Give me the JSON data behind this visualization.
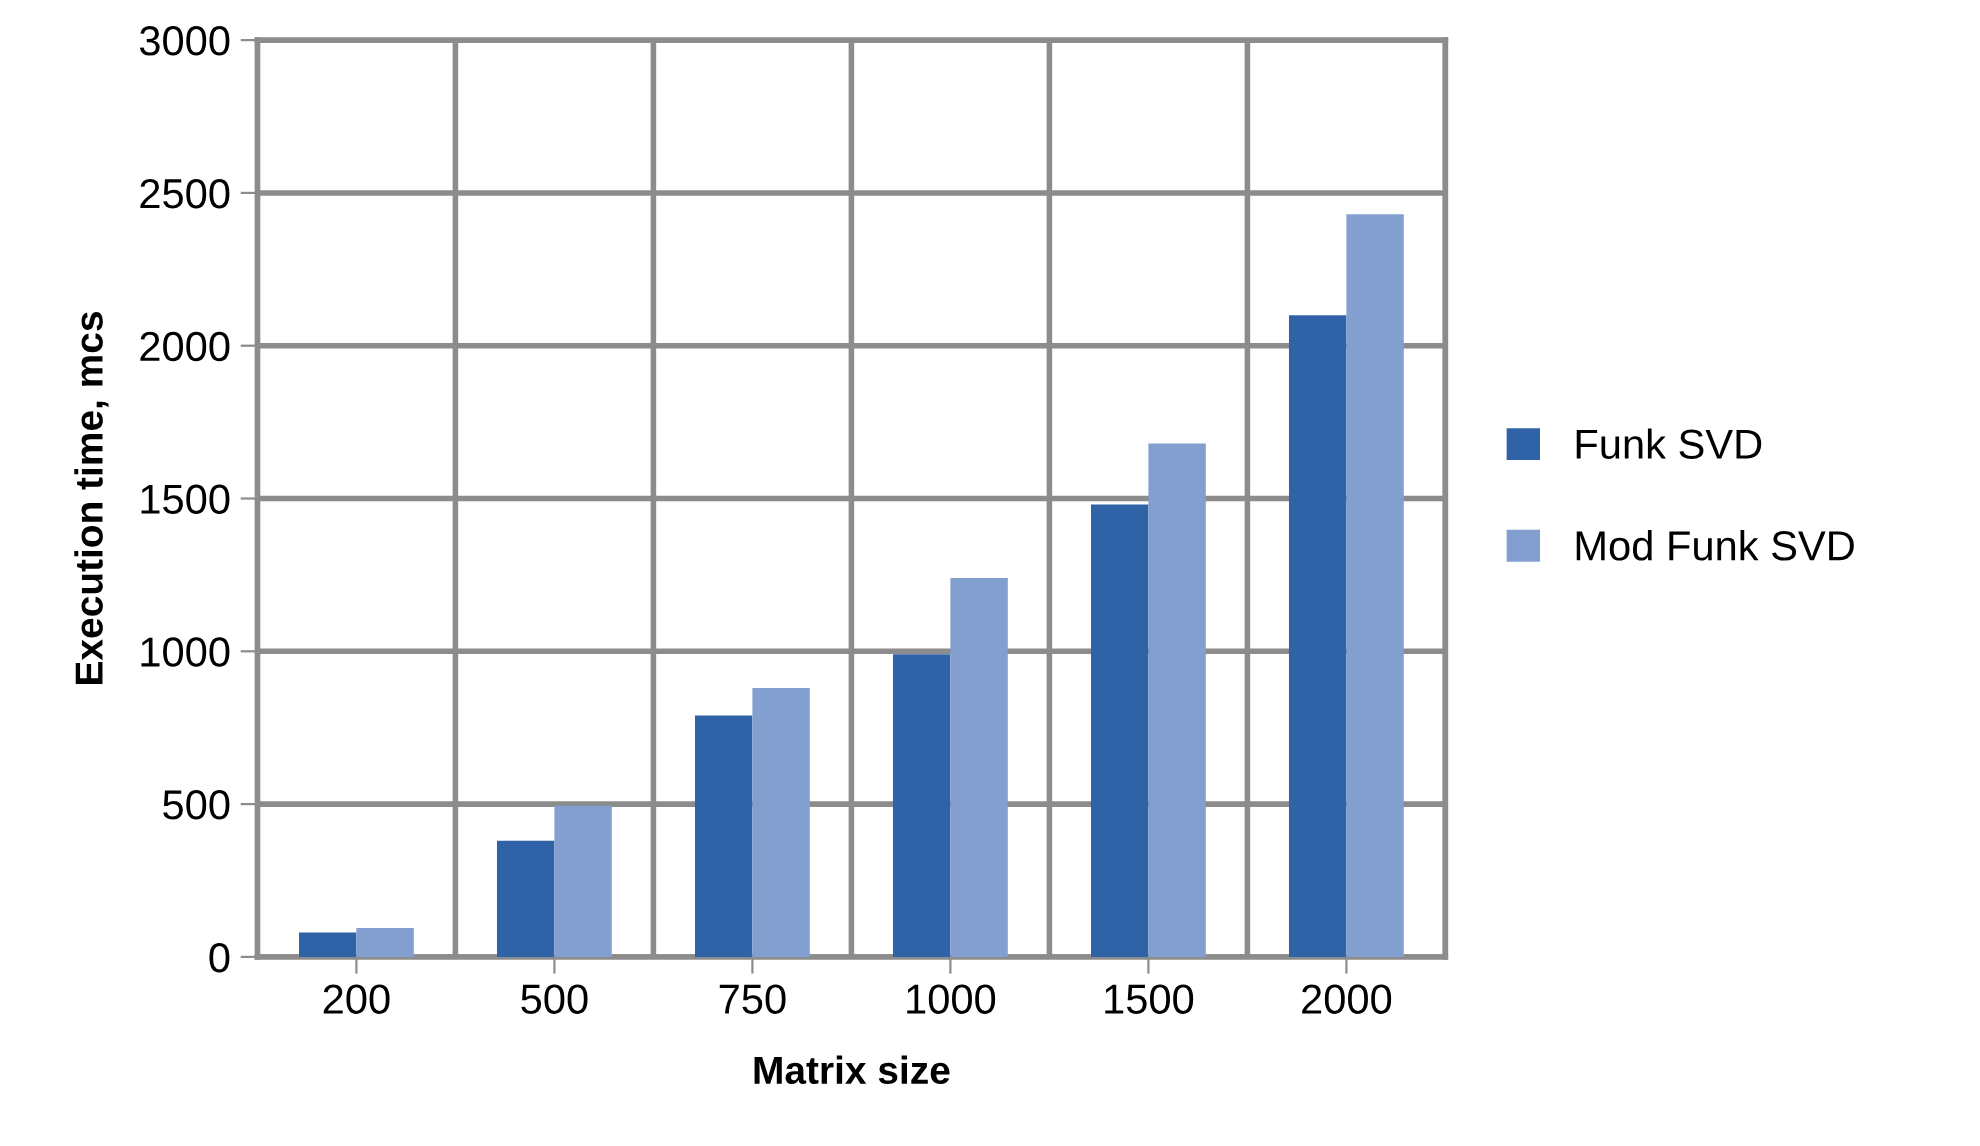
{
  "chart_data": {
    "type": "bar",
    "xlabel": "Matrix size",
    "ylabel": "Execution time, mcs",
    "categories": [
      "200",
      "500",
      "750",
      "1000",
      "1500",
      "2000"
    ],
    "series": [
      {
        "name": "Funk SVD",
        "color": "#2f62a6",
        "values": [
          80,
          380,
          790,
          990,
          1480,
          2100
        ]
      },
      {
        "name": "Mod Funk SVD",
        "color": "#829fcf",
        "values": [
          95,
          495,
          880,
          1240,
          1680,
          2430
        ]
      }
    ],
    "ylim": [
      0,
      3000
    ],
    "yticks": [
      0,
      500,
      1000,
      1500,
      2000,
      2500,
      3000
    ],
    "grid": true,
    "legend": "right"
  }
}
